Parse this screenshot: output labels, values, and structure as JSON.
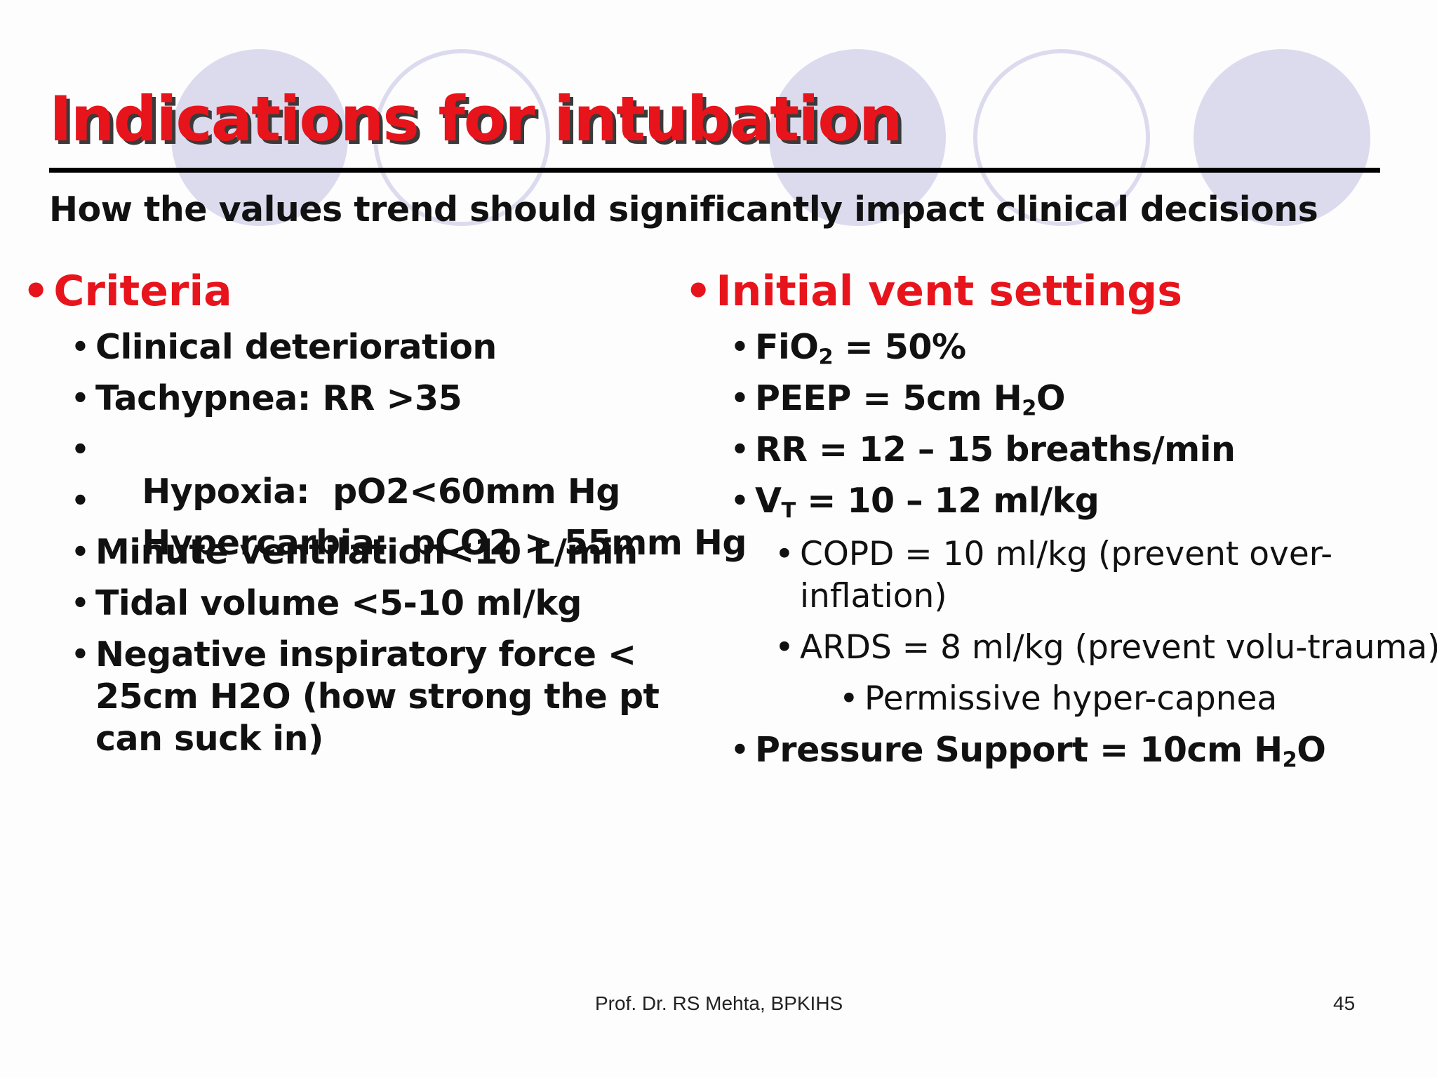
{
  "title": "Indications for intubation",
  "subtitle": "How the values trend should significantly impact clinical decisions",
  "colors": {
    "title_red": "#e8141c",
    "circle_fill": "#dcdbee",
    "circle_stroke": "#dcdbee"
  },
  "left": {
    "heading": "Criteria",
    "items": [
      "Clinical deterioration",
      "Tachypnea: RR >35",
      "Hypoxia:  pO2<60mm Hg",
      "Hypercarbia:  pCO2 > 55mm Hg",
      "Minute ventilation<10 L/min",
      "Tidal volume <5-10 ml/kg",
      "Negative inspiratory force <",
      "25cm H2O (how strong the pt",
      "can suck in)"
    ]
  },
  "right": {
    "heading": "Initial vent settings",
    "fio2": {
      "label": "FiO",
      "sub": "2",
      "value": " = 50%"
    },
    "peep": {
      "label": "PEEP = 5cm H",
      "sub": "2",
      "tail": "O"
    },
    "rr": "RR = 12 – 15 breaths/min",
    "vt": {
      "label": "V",
      "sub": "T",
      "value": " = 10 – 12 ml/kg"
    },
    "copd": [
      "COPD = 10 ml/kg (prevent over-",
      "inflation)"
    ],
    "ards": "ARDS = 8 ml/kg (prevent volu-trauma)",
    "permissive": "Permissive hyper-capnea",
    "ps": {
      "label": "Pressure Support = 10cm H",
      "sub": "2",
      "tail": "O"
    }
  },
  "footer": {
    "author": "Prof. Dr. RS Mehta, BPKIHS",
    "page": "45"
  }
}
